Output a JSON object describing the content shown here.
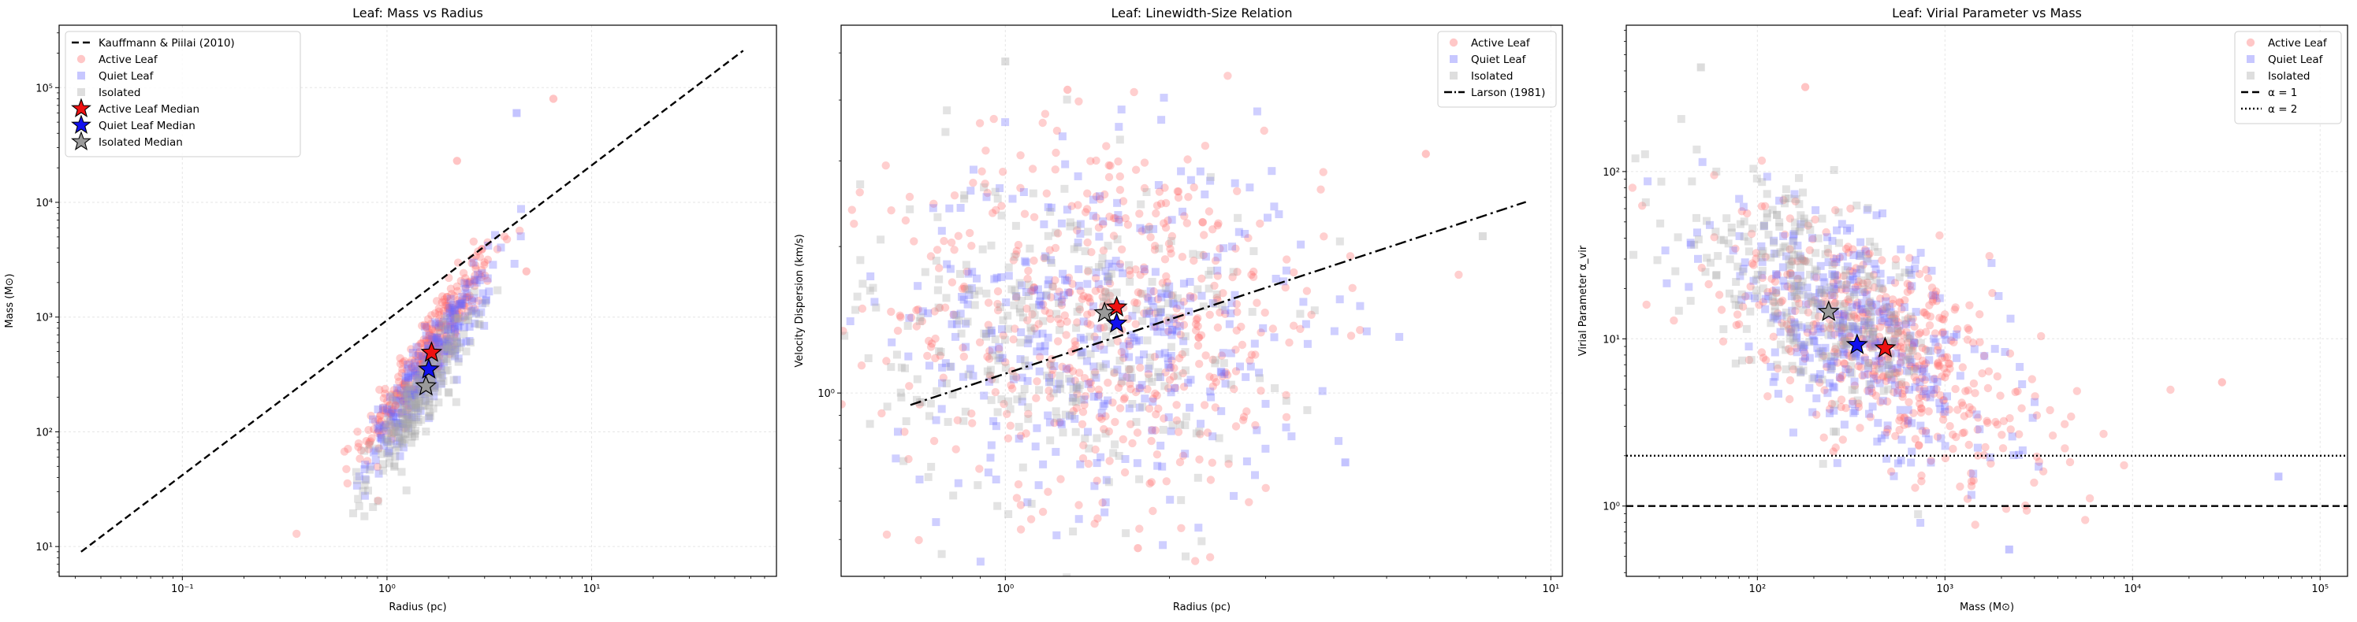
{
  "chart_data": [
    {
      "type": "scatter",
      "title": "Leaf: Mass vs Radius",
      "xlabel": "Radius (pc)",
      "ylabel": "Mass (M⊙)",
      "xscale": "log",
      "yscale": "log",
      "xlim": [
        0.025,
        80
      ],
      "ylim": [
        5.5,
        350000
      ],
      "xticks": [
        {
          "v": 0.1,
          "label": "10⁻¹"
        },
        {
          "v": 1,
          "label": "10⁰"
        },
        {
          "v": 10,
          "label": "10¹"
        }
      ],
      "yticks": [
        {
          "v": 10,
          "label": "10¹"
        },
        {
          "v": 100,
          "label": "10²"
        },
        {
          "v": 1000,
          "label": "10³"
        },
        {
          "v": 10000,
          "label": "10⁴"
        },
        {
          "v": 100000,
          "label": "10⁵"
        }
      ],
      "grid": true,
      "legend_position": "top-left",
      "legend": [
        "Kauffmann & Piilai (2010)",
        "Active Leaf",
        "Quiet Leaf",
        "Isolated",
        "Active Leaf Median",
        "Quiet Leaf Median",
        "Isolated Median"
      ],
      "lines": [
        {
          "name": "Kauffmann & Piilai (2010)",
          "style": "dashed",
          "color": "#000000",
          "points": [
            [
              0.032,
              9
            ],
            [
              55,
              210000
            ]
          ]
        }
      ],
      "scatter_clouds": [
        {
          "name": "Active Leaf",
          "color": "#ff6b6b",
          "marker": "circle",
          "center": [
            1.6,
            520
          ],
          "x_log_spread": 0.16,
          "trend_slope": 2.6,
          "y_log_scatter": 0.16,
          "count": 340
        },
        {
          "name": "Quiet Leaf",
          "color": "#6b6bff",
          "marker": "square",
          "center": [
            1.6,
            360
          ],
          "x_log_spread": 0.15,
          "trend_slope": 2.6,
          "y_log_scatter": 0.16,
          "count": 260
        },
        {
          "name": "Isolated",
          "color": "#a8a8a8",
          "marker": "square",
          "center": [
            1.45,
            190
          ],
          "x_log_spread": 0.13,
          "trend_slope": 2.6,
          "y_log_scatter": 0.16,
          "count": 220
        }
      ],
      "outliers": [
        {
          "series": "Active Leaf",
          "x": 6.5,
          "y": 80000
        },
        {
          "series": "Quiet Leaf",
          "x": 4.3,
          "y": 60000
        },
        {
          "series": "Active Leaf",
          "x": 2.2,
          "y": 23000
        },
        {
          "series": "Active Leaf",
          "x": 1.1,
          "y": 170
        },
        {
          "series": "Active Leaf",
          "x": 4.8,
          "y": 2500
        }
      ],
      "medians": [
        {
          "name": "Active Leaf Median",
          "x": 1.65,
          "y": 490,
          "color": "#ee1111"
        },
        {
          "name": "Quiet Leaf Median",
          "x": 1.6,
          "y": 350,
          "color": "#1111ee"
        },
        {
          "name": "Isolated Median",
          "x": 1.55,
          "y": 250,
          "color": "#9a9a9a"
        }
      ]
    },
    {
      "type": "scatter",
      "title": "Leaf: Linewidth-Size Relation",
      "xlabel": "Radius (pc)",
      "ylabel": "Velocity Dispersion (km/s)",
      "xscale": "log",
      "yscale": "log",
      "xlim": [
        0.5,
        10.5
      ],
      "ylim": [
        0.42,
        5.7
      ],
      "xticks": [
        {
          "v": 1,
          "label": "10⁰"
        },
        {
          "v": 10,
          "label": "10¹"
        }
      ],
      "yticks": [
        {
          "v": 1,
          "label": "10⁰"
        }
      ],
      "grid": true,
      "legend_position": "top-right",
      "legend": [
        "Active Leaf",
        "Quiet Leaf",
        "Isolated",
        "Larson (1981)"
      ],
      "lines": [
        {
          "name": "Larson (1981)",
          "style": "dashdot",
          "color": "#000000",
          "points": [
            [
              0.67,
              0.945
            ],
            [
              9.0,
              2.47
            ]
          ]
        }
      ],
      "scatter_clouds": [
        {
          "name": "Active Leaf",
          "color": "#ff6b6b",
          "marker": "circle",
          "center": [
            1.55,
            1.45
          ],
          "x_log_spread": 0.2,
          "trend_slope": 0.0,
          "y_log_scatter": 0.19,
          "count": 520
        },
        {
          "name": "Quiet Leaf",
          "color": "#6b6bff",
          "marker": "square",
          "center": [
            1.5,
            1.35
          ],
          "x_log_spread": 0.19,
          "trend_slope": 0.0,
          "y_log_scatter": 0.18,
          "count": 360
        },
        {
          "name": "Isolated",
          "color": "#a8a8a8",
          "marker": "square",
          "center": [
            1.25,
            1.3
          ],
          "x_log_spread": 0.18,
          "trend_slope": 0.0,
          "y_log_scatter": 0.17,
          "count": 300
        }
      ],
      "outliers": [
        {
          "series": "Isolated",
          "x": 1.0,
          "y": 4.8
        },
        {
          "series": "Active Leaf",
          "x": 1.3,
          "y": 4.2
        },
        {
          "series": "Active Leaf",
          "x": 5.9,
          "y": 3.1
        },
        {
          "series": "Quiet Leaf",
          "x": 4.2,
          "y": 0.72
        },
        {
          "series": "Isolated",
          "x": 7.5,
          "y": 2.1
        },
        {
          "series": "Active Leaf",
          "x": 1.75,
          "y": 0.48
        }
      ],
      "medians": [
        {
          "name": "Active Leaf Median",
          "x": 1.6,
          "y": 1.5,
          "color": "#ee1111"
        },
        {
          "name": "Quiet Leaf Median",
          "x": 1.6,
          "y": 1.39,
          "color": "#1111ee"
        },
        {
          "name": "Isolated Median",
          "x": 1.52,
          "y": 1.46,
          "color": "#9a9a9a"
        }
      ]
    },
    {
      "type": "scatter",
      "title": "Leaf: Virial Parameter vs Mass",
      "xlabel": "Mass (M⊙)",
      "ylabel": "Virial Parameter α_vir",
      "xscale": "log",
      "yscale": "log",
      "xlim": [
        20,
        140000
      ],
      "ylim": [
        0.38,
        750
      ],
      "xticks": [
        {
          "v": 100,
          "label": "10²"
        },
        {
          "v": 1000,
          "label": "10³"
        },
        {
          "v": 10000,
          "label": "10⁴"
        },
        {
          "v": 100000,
          "label": "10⁵"
        }
      ],
      "yticks": [
        {
          "v": 1,
          "label": "10⁰"
        },
        {
          "v": 10,
          "label": "10¹"
        },
        {
          "v": 100,
          "label": "10²"
        }
      ],
      "grid": true,
      "legend_position": "top-right",
      "legend": [
        "Active Leaf",
        "Quiet Leaf",
        "Isolated",
        "α = 1",
        "α = 2"
      ],
      "lines": [
        {
          "name": "α = 1",
          "style": "dashed",
          "color": "#000000",
          "points": [
            [
              20,
              1
            ],
            [
              140000,
              1
            ]
          ]
        },
        {
          "name": "α = 2",
          "style": "dotted",
          "color": "#000000",
          "points": [
            [
              20,
              2
            ],
            [
              140000,
              2
            ]
          ]
        }
      ],
      "scatter_clouds": [
        {
          "name": "Active Leaf",
          "color": "#ff6b6b",
          "marker": "circle",
          "center": [
            480,
            9
          ],
          "x_log_spread": 0.42,
          "trend_slope": -0.6,
          "y_log_scatter": 0.3,
          "count": 520
        },
        {
          "name": "Quiet Leaf",
          "color": "#6b6bff",
          "marker": "square",
          "center": [
            330,
            11
          ],
          "x_log_spread": 0.4,
          "trend_slope": -0.6,
          "y_log_scatter": 0.3,
          "count": 360
        },
        {
          "name": "Isolated",
          "color": "#a8a8a8",
          "marker": "square",
          "center": [
            190,
            18
          ],
          "x_log_spread": 0.35,
          "trend_slope": -0.6,
          "y_log_scatter": 0.28,
          "count": 300
        }
      ],
      "outliers": [
        {
          "series": "Isolated",
          "x": 50,
          "y": 420
        },
        {
          "series": "Active Leaf",
          "x": 180,
          "y": 320
        },
        {
          "series": "Quiet Leaf",
          "x": 60000,
          "y": 1.5
        },
        {
          "series": "Active Leaf",
          "x": 30000,
          "y": 5.5
        },
        {
          "series": "Quiet Leaf",
          "x": 2200,
          "y": 0.55
        }
      ],
      "medians": [
        {
          "name": "Active Leaf Median",
          "x": 480,
          "y": 8.8,
          "color": "#ee1111"
        },
        {
          "name": "Quiet Leaf Median",
          "x": 340,
          "y": 9.2,
          "color": "#1111ee"
        },
        {
          "name": "Isolated Median",
          "x": 240,
          "y": 14.5,
          "color": "#9a9a9a"
        }
      ]
    }
  ]
}
